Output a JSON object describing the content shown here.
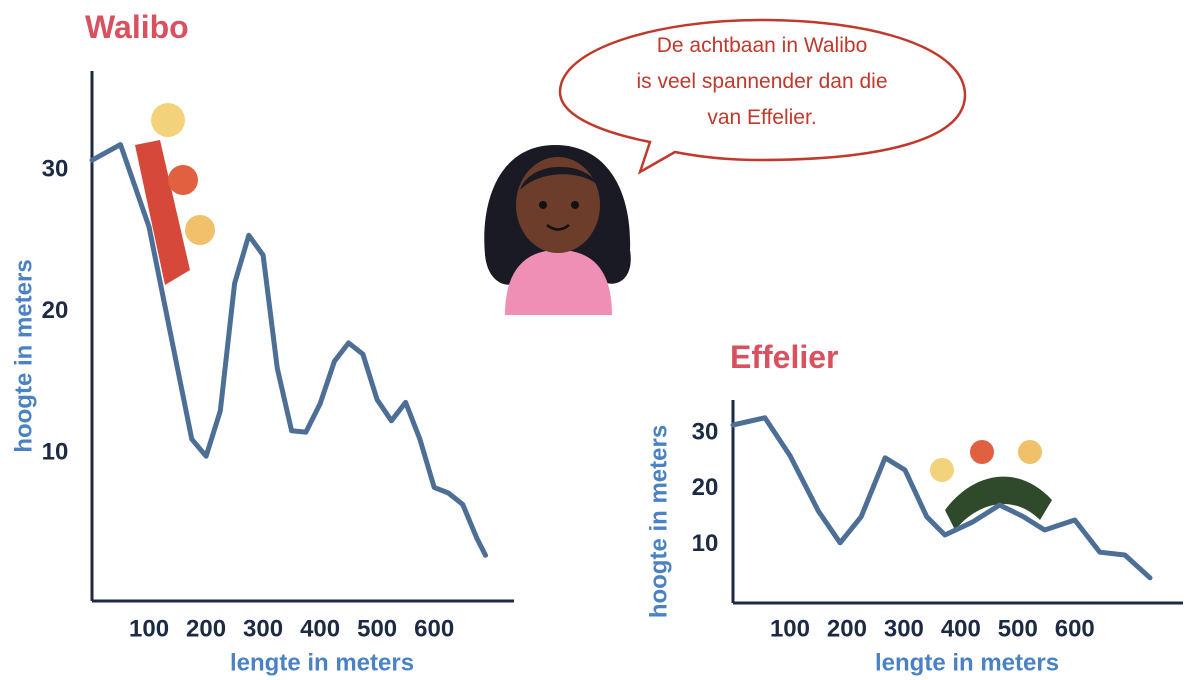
{
  "speech_bubble": [
    "De achtbaan in Walibo",
    "is veel spannender dan die",
    "van Effelier."
  ],
  "chart_data": [
    {
      "type": "line",
      "title": "Walibo",
      "x_label": "lengte in meters",
      "y_label": "hoogte in meters",
      "color": "#4d6f96",
      "x": [
        0,
        50,
        100,
        150,
        175,
        200,
        225,
        250,
        275,
        300,
        325,
        350,
        375,
        400,
        425,
        450,
        475,
        500,
        525,
        550,
        575,
        600,
        625,
        650,
        675,
        690
      ],
      "values": [
        30.7,
        31.8,
        26,
        16,
        11,
        9.8,
        13,
        22,
        25.4,
        24,
        16,
        11.6,
        11.5,
        13.5,
        16.5,
        17.8,
        17,
        13.8,
        12.3,
        13.6,
        11,
        7.6,
        7.2,
        6.4,
        4,
        2.8
      ],
      "xlim": [
        0,
        740
      ],
      "ylim": [
        0,
        37
      ],
      "xticks": [
        100,
        200,
        300,
        400,
        500,
        600
      ],
      "yticks": [
        10,
        20,
        30
      ]
    },
    {
      "type": "line",
      "title": "Effelier",
      "x_label": "lengte in meters",
      "y_label": "hoogte in meters",
      "color": "#4d6f96",
      "x": [
        0,
        56,
        100,
        150,
        188,
        225,
        267,
        302,
        340,
        372,
        420,
        468,
        510,
        547,
        600,
        644,
        688,
        732
      ],
      "values": [
        31.5,
        32.8,
        26,
        16,
        10.3,
        15,
        25.6,
        23.4,
        15,
        11.7,
        14,
        17.1,
        15,
        12.6,
        14.4,
        8.6,
        8.1,
        4
      ],
      "xlim": [
        0,
        790
      ],
      "ylim": [
        0,
        36
      ],
      "xticks": [
        100,
        200,
        300,
        400,
        500,
        600
      ],
      "yticks": [
        10,
        20,
        30
      ]
    }
  ]
}
